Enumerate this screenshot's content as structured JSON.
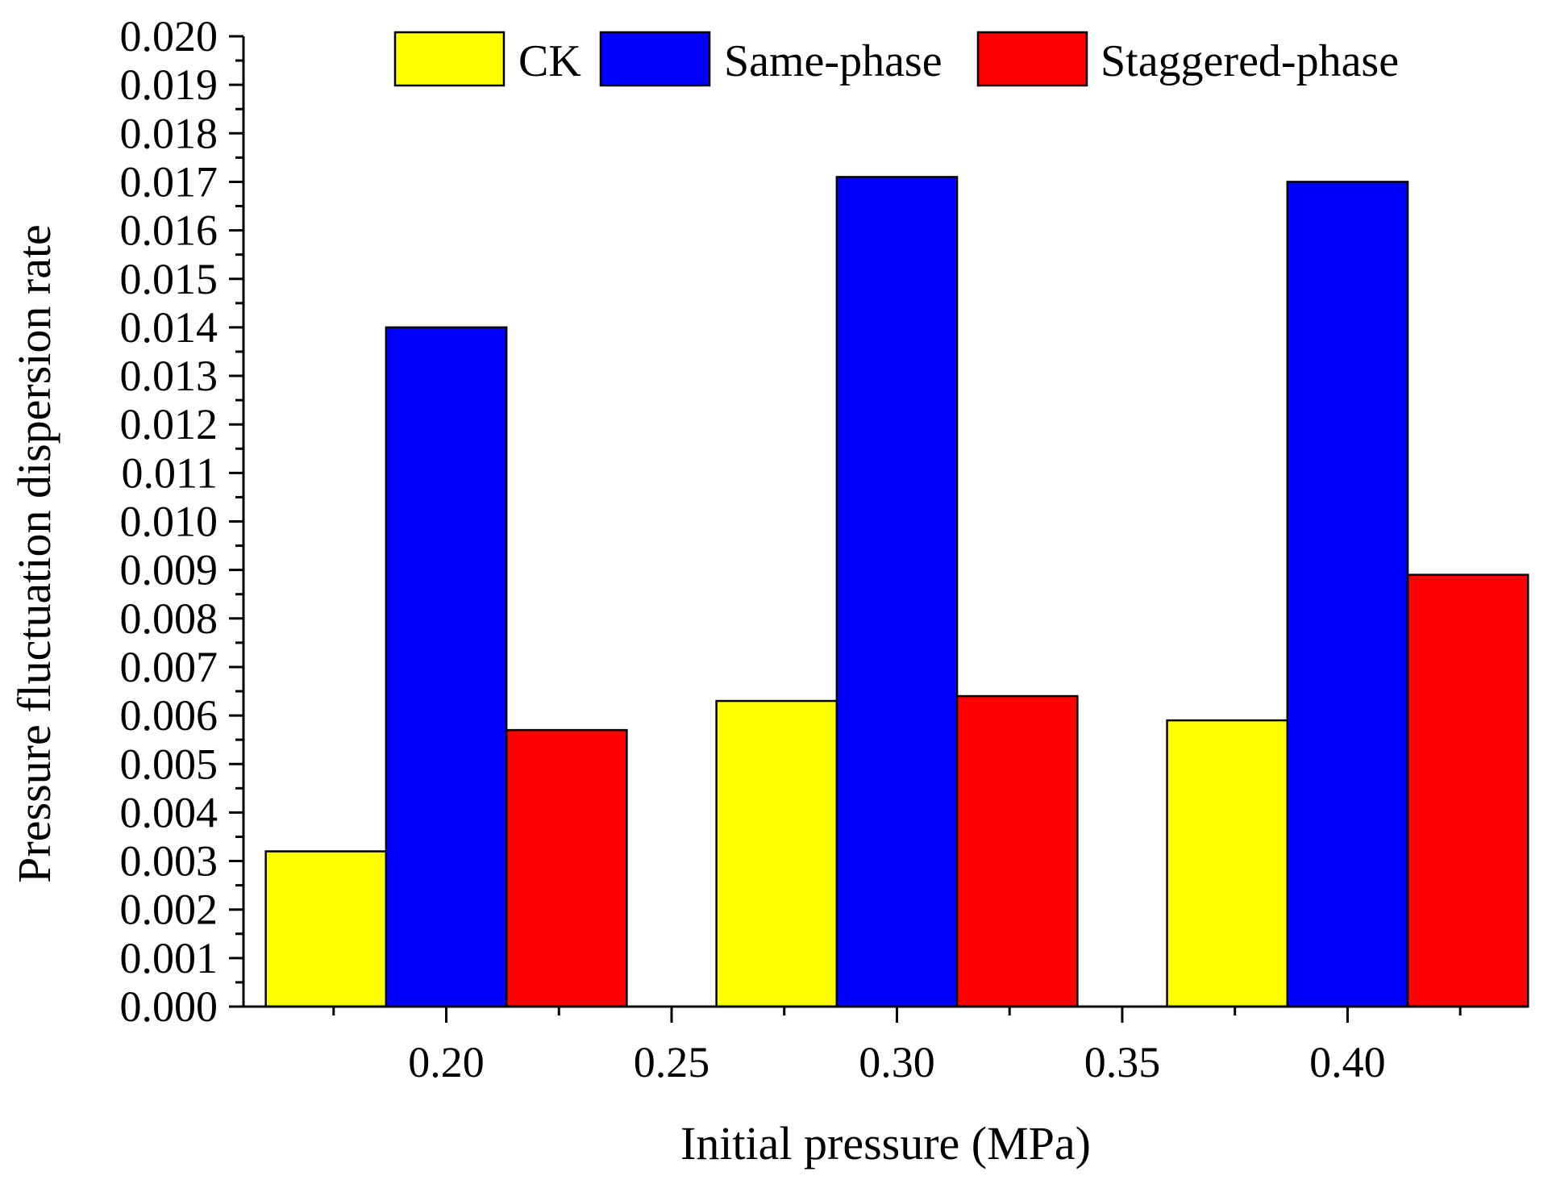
{
  "chart_data": {
    "type": "bar",
    "xlabel": "Initial pressure (MPa)",
    "ylabel": "Pressure fluctuation dispersion rate",
    "title": "",
    "ylim": [
      0,
      0.02
    ],
    "xlim": [
      0.155,
      0.44
    ],
    "y_ticks": [
      "0.000",
      "0.001",
      "0.002",
      "0.003",
      "0.004",
      "0.005",
      "0.006",
      "0.007",
      "0.008",
      "0.009",
      "0.010",
      "0.011",
      "0.012",
      "0.013",
      "0.014",
      "0.015",
      "0.016",
      "0.017",
      "0.018",
      "0.019",
      "0.020"
    ],
    "x_ticks": [
      "0.20",
      "0.25",
      "0.30",
      "0.35",
      "0.40"
    ],
    "categories": [
      "0.20",
      "0.30",
      "0.40"
    ],
    "series": [
      {
        "name": "CK",
        "color": "#ffff00",
        "values": [
          0.0032,
          0.0063,
          0.0059
        ]
      },
      {
        "name": "Same-phase",
        "color": "#0000ff",
        "values": [
          0.014,
          0.0171,
          0.017
        ]
      },
      {
        "name": "Staggered-phase",
        "color": "#ff0000",
        "values": [
          0.0057,
          0.0064,
          0.0089
        ]
      }
    ],
    "legend_position": "top",
    "grid": false
  }
}
